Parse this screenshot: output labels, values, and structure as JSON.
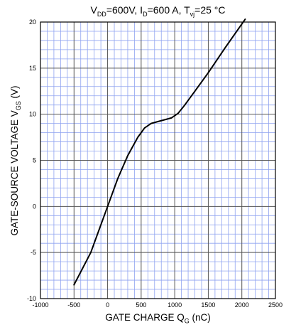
{
  "chart_data": {
    "type": "line",
    "title": {
      "pre": "V",
      "vsub": "DD",
      "mid1": "=600V, I",
      "isub": "D",
      "mid2": "=600 A, T",
      "tsub": "vj",
      "post": "=25 °C"
    },
    "xlabel": {
      "main": "GATE CHARGE   Q",
      "sub": "G",
      "unit": "   (nC)"
    },
    "ylabel": {
      "main": "GATE-SOURCE VOLTAGE   V",
      "sub": "GS",
      "unit": "   (V)"
    },
    "xlim": [
      -1000,
      2500
    ],
    "ylim": [
      -10,
      20
    ],
    "xticks": [
      -1000,
      -500,
      0,
      500,
      1000,
      1500,
      2000,
      2500
    ],
    "yticks": [
      -10,
      -5,
      0,
      5,
      10,
      15,
      20
    ],
    "grid": true,
    "minor_x_step": 100,
    "minor_y_step": 1,
    "colors": {
      "minor_grid": "#8fa3f0",
      "major_grid": "#555555",
      "line": "#000000"
    },
    "series": [
      {
        "x": [
          -500,
          -250,
          0,
          150,
          300,
          450,
          550,
          650,
          750,
          950,
          1050,
          1150,
          1300,
          1500,
          1750,
          2050
        ],
        "y": [
          -8.5,
          -5,
          0,
          3,
          5.5,
          7.5,
          8.5,
          9,
          9.2,
          9.6,
          10.1,
          11,
          12.5,
          14.5,
          17.2,
          20.3
        ]
      }
    ]
  }
}
